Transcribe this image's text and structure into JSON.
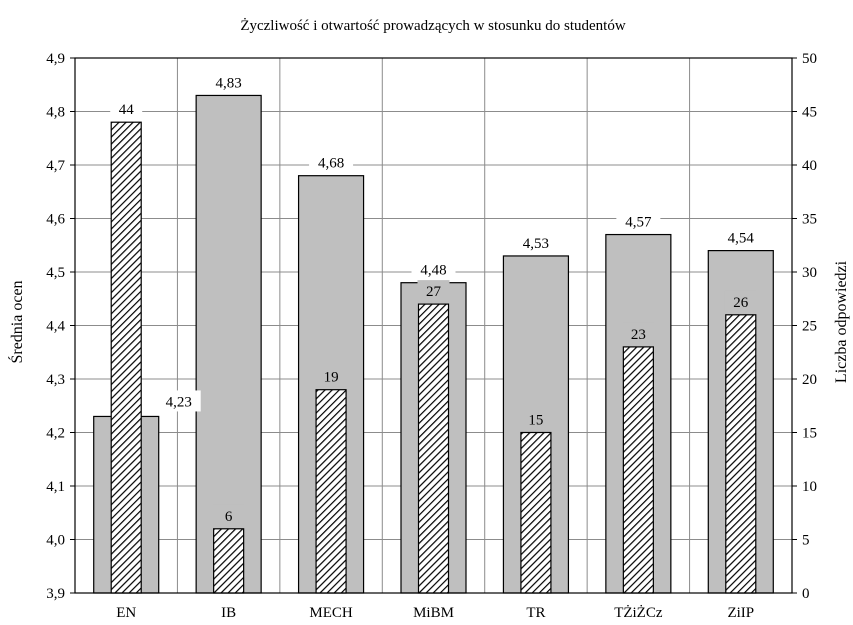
{
  "chart_data": {
    "type": "bar",
    "title": "Życzliwość i otwartość prowadzących w stosunku do studentów",
    "categories": [
      "EN",
      "IB",
      "MECH",
      "MiBM",
      "TR",
      "TŻiŻCz",
      "ZiIP"
    ],
    "series": [
      {
        "axis": "left",
        "values": [
          4.23,
          4.83,
          4.68,
          4.48,
          4.53,
          4.57,
          4.54
        ],
        "labels": [
          "4,23",
          "4,83",
          "4,68",
          "4,48",
          "4,53",
          "4,57",
          "4,54"
        ],
        "fill": "gray"
      },
      {
        "axis": "right",
        "values": [
          44,
          6,
          19,
          27,
          15,
          23,
          26
        ],
        "labels": [
          "44",
          "6",
          "19",
          "27",
          "15",
          "23",
          "26"
        ],
        "fill": "hatched"
      }
    ],
    "ylabel_left": "Średnia ocen",
    "ylabel_right": "Liczba odpowiedzi",
    "ylim_left": [
      3.9,
      4.9
    ],
    "ylim_right": [
      0,
      50
    ],
    "yticks_left": [
      "3,9",
      "4,0",
      "4,1",
      "4,2",
      "4,3",
      "4,4",
      "4,5",
      "4,6",
      "4,7",
      "4,8",
      "4,9"
    ],
    "yticks_right": [
      "0",
      "5",
      "10",
      "15",
      "20",
      "25",
      "30",
      "35",
      "40",
      "45",
      "50"
    ],
    "grid": true,
    "colors": {
      "gray_bar": "#bfbfbf",
      "hatch": "#000000",
      "grid": "#8c8c8c"
    }
  }
}
